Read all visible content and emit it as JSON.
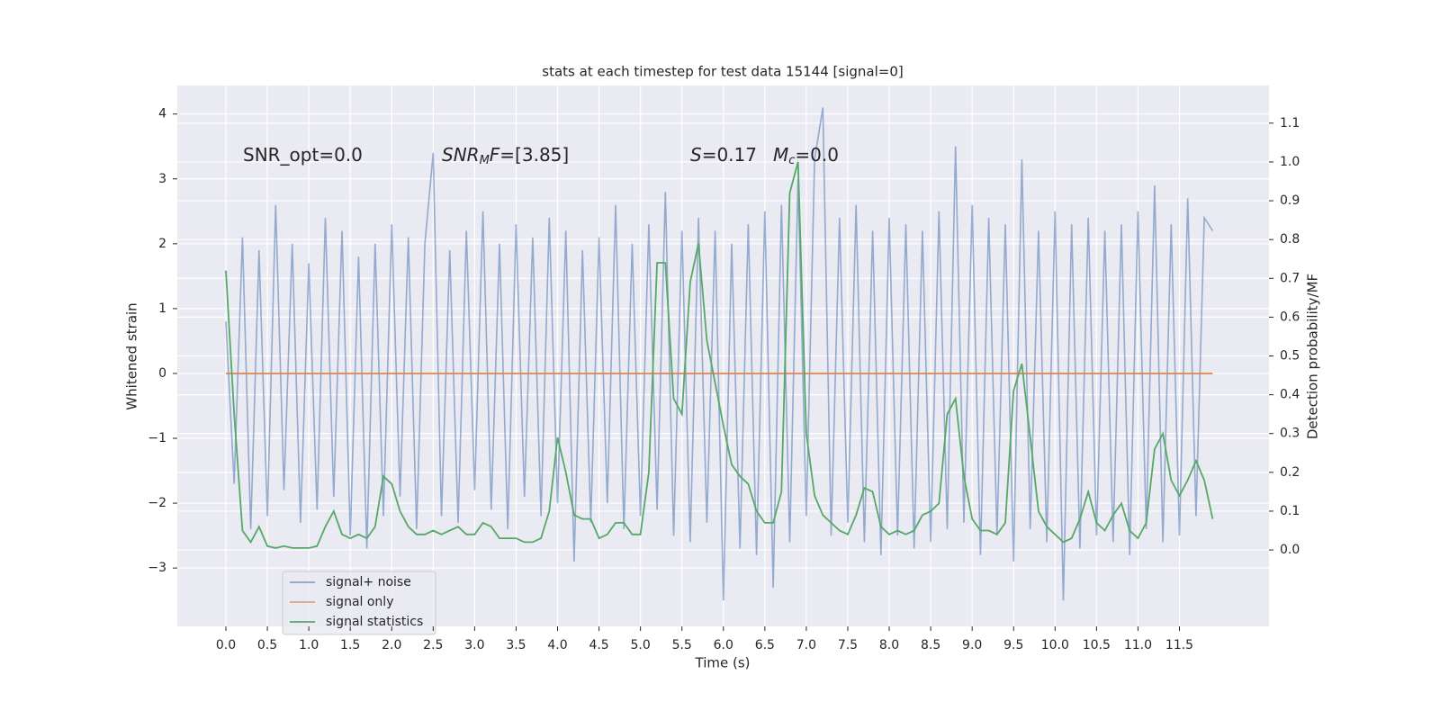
{
  "chart_data": {
    "type": "line",
    "title": "stats at each timestep for test data 15144 [signal=0]",
    "xlabel": "Time (s)",
    "ylabel": "Whitened strain",
    "y2label": "Detection probability/MF",
    "annotations": [
      [
        "SNR_opt=0.0"
      ],
      [
        "SNR",
        "M",
        "F",
        "=[3.85]"
      ],
      [
        "S",
        "=0.17"
      ],
      [
        "M",
        "c",
        "=0.0"
      ]
    ],
    "x": [
      0.0,
      0.1,
      0.2,
      0.3,
      0.4,
      0.5,
      0.6,
      0.7,
      0.8,
      0.9,
      1.0,
      1.1,
      1.2,
      1.3,
      1.4,
      1.5,
      1.6,
      1.7,
      1.8,
      1.9,
      2.0,
      2.1,
      2.2,
      2.3,
      2.4,
      2.5,
      2.6,
      2.7,
      2.8,
      2.9,
      3.0,
      3.1,
      3.2,
      3.3,
      3.4,
      3.5,
      3.6,
      3.7,
      3.8,
      3.9,
      4.0,
      4.1,
      4.2,
      4.3,
      4.4,
      4.5,
      4.6,
      4.7,
      4.8,
      4.9,
      5.0,
      5.1,
      5.2,
      5.3,
      5.4,
      5.5,
      5.6,
      5.7,
      5.8,
      5.9,
      6.0,
      6.1,
      6.2,
      6.3,
      6.4,
      6.5,
      6.6,
      6.7,
      6.8,
      6.9,
      7.0,
      7.1,
      7.2,
      7.3,
      7.4,
      7.5,
      7.6,
      7.7,
      7.8,
      7.9,
      8.0,
      8.1,
      8.2,
      8.3,
      8.4,
      8.5,
      8.6,
      8.7,
      8.8,
      8.9,
      9.0,
      9.1,
      9.2,
      9.3,
      9.4,
      9.5,
      9.6,
      9.7,
      9.8,
      9.9,
      10.0,
      10.1,
      10.2,
      10.3,
      10.4,
      10.5,
      10.6,
      10.7,
      10.8,
      10.9,
      11.0,
      11.1,
      11.2,
      11.3,
      11.4,
      11.5,
      11.6,
      11.7,
      11.8,
      11.9
    ],
    "series": [
      {
        "name": "signal+ noise",
        "color": "#4c72b0",
        "values": [
          0.8,
          -1.7,
          2.1,
          -2.4,
          1.9,
          -2.2,
          2.6,
          -1.8,
          2.0,
          -2.3,
          1.7,
          -2.1,
          2.4,
          -1.9,
          2.2,
          -2.5,
          1.8,
          -2.7,
          2.0,
          -2.2,
          2.3,
          -1.9,
          2.1,
          -2.4,
          2.0,
          3.4,
          -2.2,
          1.9,
          -2.3,
          2.2,
          -1.8,
          2.5,
          -2.1,
          2.0,
          -2.4,
          2.3,
          -1.9,
          2.1,
          -2.2,
          2.4,
          -2.0,
          2.2,
          -2.9,
          1.9,
          -2.3,
          2.1,
          -2.0,
          2.6,
          -2.4,
          2.0,
          -2.2,
          2.3,
          -2.1,
          2.8,
          -2.5,
          2.2,
          -2.6,
          2.4,
          -2.3,
          2.2,
          -3.5,
          2.0,
          -2.7,
          2.3,
          -2.8,
          2.5,
          -3.3,
          2.6,
          -2.6,
          3.0,
          -2.2,
          3.3,
          4.1,
          -2.5,
          2.4,
          -2.3,
          2.6,
          -2.6,
          2.2,
          -2.8,
          2.4,
          -2.5,
          2.3,
          -2.7,
          2.2,
          -2.6,
          2.5,
          -2.4,
          3.5,
          -2.3,
          2.6,
          -2.8,
          2.4,
          -2.5,
          2.3,
          -2.9,
          3.3,
          -2.4,
          2.2,
          -2.6,
          2.5,
          -3.5,
          2.3,
          -2.7,
          2.4,
          -2.5,
          2.2,
          -2.6,
          2.3,
          -2.8,
          2.5,
          -2.4,
          2.9,
          -2.6,
          2.3,
          -2.5,
          2.7,
          -2.2,
          2.4,
          2.2
        ]
      },
      {
        "name": "signal only",
        "color": "#dd8452",
        "values": [
          0,
          0,
          0,
          0,
          0,
          0,
          0,
          0,
          0,
          0,
          0,
          0,
          0,
          0,
          0,
          0,
          0,
          0,
          0,
          0,
          0,
          0,
          0,
          0,
          0,
          0,
          0,
          0,
          0,
          0,
          0,
          0,
          0,
          0,
          0,
          0,
          0,
          0,
          0,
          0,
          0,
          0,
          0,
          0,
          0,
          0,
          0,
          0,
          0,
          0,
          0,
          0,
          0,
          0,
          0,
          0,
          0,
          0,
          0,
          0,
          0,
          0,
          0,
          0,
          0,
          0,
          0,
          0,
          0,
          0,
          0,
          0,
          0,
          0,
          0,
          0,
          0,
          0,
          0,
          0,
          0,
          0,
          0,
          0,
          0,
          0,
          0,
          0,
          0,
          0,
          0,
          0,
          0,
          0,
          0,
          0,
          0,
          0,
          0,
          0,
          0,
          0,
          0,
          0,
          0,
          0,
          0,
          0,
          0,
          0,
          0,
          0,
          0,
          0,
          0,
          0,
          0,
          0,
          0,
          0
        ]
      },
      {
        "name": "signal statistics",
        "color": "#55a868",
        "axis": "y2",
        "values": [
          0.72,
          0.35,
          0.05,
          0.02,
          0.06,
          0.01,
          0.005,
          0.01,
          0.005,
          0.005,
          0.005,
          0.01,
          0.06,
          0.1,
          0.04,
          0.03,
          0.04,
          0.03,
          0.06,
          0.19,
          0.17,
          0.1,
          0.06,
          0.04,
          0.04,
          0.05,
          0.04,
          0.05,
          0.06,
          0.04,
          0.04,
          0.07,
          0.06,
          0.03,
          0.03,
          0.03,
          0.02,
          0.02,
          0.03,
          0.1,
          0.29,
          0.2,
          0.09,
          0.08,
          0.08,
          0.03,
          0.04,
          0.07,
          0.07,
          0.04,
          0.04,
          0.2,
          0.74,
          0.74,
          0.39,
          0.35,
          0.69,
          0.79,
          0.54,
          0.43,
          0.32,
          0.22,
          0.19,
          0.17,
          0.1,
          0.07,
          0.07,
          0.15,
          0.92,
          1.0,
          0.3,
          0.14,
          0.09,
          0.07,
          0.05,
          0.04,
          0.09,
          0.16,
          0.15,
          0.06,
          0.04,
          0.05,
          0.04,
          0.05,
          0.09,
          0.1,
          0.12,
          0.35,
          0.39,
          0.19,
          0.08,
          0.05,
          0.05,
          0.04,
          0.07,
          0.41,
          0.48,
          0.29,
          0.1,
          0.06,
          0.04,
          0.02,
          0.03,
          0.08,
          0.15,
          0.07,
          0.05,
          0.09,
          0.12,
          0.05,
          0.03,
          0.07,
          0.26,
          0.3,
          0.18,
          0.14,
          0.18,
          0.23,
          0.18,
          0.08
        ]
      }
    ],
    "xlim": [
      -0.586,
      12.58
    ],
    "ylim": [
      -3.9,
      4.44
    ],
    "y2lim": [
      -0.197,
      1.197
    ],
    "xticks": [
      {
        "value": 0,
        "label": "0.0"
      },
      0.5,
      {
        "value": 1,
        "label": "1.0"
      },
      1.5,
      {
        "value": 2,
        "label": "2.0"
      },
      2.5,
      {
        "value": 3,
        "label": "3.0"
      },
      3.5,
      {
        "value": 4,
        "label": "4.0"
      },
      4.5,
      {
        "value": 5,
        "label": "5.0"
      },
      5.5,
      {
        "value": 6,
        "label": "6.0"
      },
      6.5,
      {
        "value": 7,
        "label": "7.0"
      },
      7.5,
      {
        "value": 8,
        "label": "8.0"
      },
      8.5,
      {
        "value": 9,
        "label": "9.0"
      },
      9.5,
      {
        "value": 10,
        "label": "10.0"
      },
      10.5,
      {
        "value": 11,
        "label": "11.0"
      },
      11.5
    ],
    "yticks": [
      {
        "value": -3,
        "label": "−3"
      },
      {
        "value": -2,
        "label": "−2"
      },
      {
        "value": -1,
        "label": "−1"
      },
      0,
      1,
      2,
      3,
      4
    ],
    "y2ticks": [
      {
        "value": 0,
        "label": "0.0"
      },
      0.1,
      0.2,
      0.3,
      0.4,
      0.5,
      0.6,
      0.7,
      0.8,
      0.9,
      {
        "value": 1,
        "label": "1.0"
      },
      1.1
    ],
    "grid": true,
    "legend": "lower left"
  }
}
